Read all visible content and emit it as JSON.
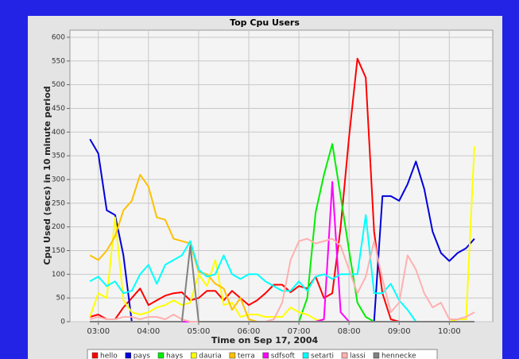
{
  "chart_data": {
    "type": "line",
    "title": "Top Cpu Users",
    "x_label": "Time on Sep 17, 2004",
    "y_label": "Cpu Used (secs) in 10 minute period",
    "x": [
      170,
      180,
      190,
      200,
      210,
      220,
      230,
      240,
      250,
      260,
      270,
      280,
      290,
      300,
      310,
      320,
      330,
      340,
      350,
      360,
      370,
      380,
      390,
      400,
      410,
      420,
      430,
      440,
      450,
      460,
      470,
      480,
      490,
      500,
      510,
      520,
      530,
      540,
      550,
      560,
      570,
      580,
      590,
      600,
      610,
      620,
      630
    ],
    "xlim": [
      146,
      652
    ],
    "xticks": [
      {
        "value": 180,
        "label": "03:00"
      },
      {
        "value": 240,
        "label": "04:00"
      },
      {
        "value": 300,
        "label": "05:00"
      },
      {
        "value": 360,
        "label": "06:00"
      },
      {
        "value": 420,
        "label": "07:00"
      },
      {
        "value": 480,
        "label": "08:00"
      },
      {
        "value": 540,
        "label": "09:00"
      },
      {
        "value": 600,
        "label": "10:00"
      }
    ],
    "ylim": [
      0,
      615
    ],
    "yticks": [
      0,
      50,
      100,
      150,
      200,
      250,
      300,
      350,
      400,
      450,
      500,
      550,
      600
    ],
    "grid": true,
    "legend": "bottom",
    "series": [
      {
        "name": "hello",
        "color": "#ff0000",
        "values": [
          10,
          15,
          5,
          5,
          30,
          50,
          70,
          35,
          45,
          55,
          60,
          62,
          45,
          50,
          65,
          65,
          45,
          65,
          50,
          35,
          45,
          60,
          78,
          78,
          62,
          75,
          70,
          95,
          50,
          60,
          200,
          390,
          555,
          515,
          190,
          60,
          5,
          0,
          0,
          0,
          0,
          0,
          0,
          0,
          0,
          0,
          0
        ]
      },
      {
        "name": "pays",
        "color": "#0000dd",
        "values": [
          385,
          355,
          235,
          225,
          140,
          0,
          0,
          0,
          0,
          0,
          0,
          0,
          0,
          0,
          0,
          0,
          0,
          0,
          0,
          0,
          0,
          0,
          0,
          0,
          0,
          0,
          0,
          0,
          0,
          0,
          0,
          0,
          0,
          0,
          0,
          265,
          265,
          255,
          290,
          338,
          280,
          190,
          145,
          128,
          145,
          155,
          175
        ]
      },
      {
        "name": "hays",
        "color": "#00ee00",
        "values": [
          0,
          0,
          0,
          0,
          0,
          0,
          0,
          0,
          0,
          0,
          0,
          0,
          0,
          0,
          0,
          0,
          0,
          0,
          0,
          0,
          0,
          0,
          0,
          0,
          0,
          0,
          50,
          230,
          310,
          375,
          265,
          150,
          40,
          10,
          0,
          0,
          0,
          0,
          0,
          0,
          0,
          0,
          0,
          0,
          0,
          0,
          0
        ]
      },
      {
        "name": "dauria",
        "color": "#ffff00",
        "values": [
          10,
          60,
          50,
          220,
          45,
          20,
          15,
          20,
          30,
          35,
          45,
          35,
          40,
          100,
          75,
          130,
          35,
          40,
          10,
          15,
          15,
          10,
          10,
          10,
          30,
          20,
          15,
          5,
          0,
          0,
          0,
          0,
          0,
          0,
          0,
          0,
          0,
          0,
          0,
          0,
          0,
          0,
          0,
          0,
          5,
          5,
          370
        ]
      },
      {
        "name": "terra",
        "color": "#ffc000",
        "values": [
          140,
          130,
          150,
          180,
          235,
          255,
          310,
          285,
          220,
          215,
          175,
          170,
          165,
          105,
          100,
          80,
          70,
          25,
          50,
          5,
          0,
          0,
          0,
          0,
          0,
          0,
          0,
          0,
          0,
          0,
          0,
          0,
          0,
          0,
          0,
          0,
          0,
          0,
          0,
          0,
          0,
          0,
          0,
          0,
          0,
          0,
          0
        ]
      },
      {
        "name": "sdfsoft",
        "color": "#ff00ff",
        "values": [
          0,
          0,
          0,
          0,
          0,
          0,
          0,
          0,
          0,
          0,
          0,
          0,
          0,
          0,
          0,
          0,
          0,
          0,
          0,
          0,
          0,
          0,
          0,
          0,
          0,
          0,
          0,
          0,
          5,
          295,
          20,
          0,
          0,
          0,
          0,
          0,
          0,
          0,
          0,
          0,
          0,
          0,
          0,
          0,
          0,
          0,
          0
        ]
      },
      {
        "name": "setarti",
        "color": "#00ffff",
        "values": [
          85,
          95,
          75,
          85,
          60,
          65,
          100,
          120,
          80,
          120,
          130,
          140,
          170,
          110,
          95,
          100,
          140,
          100,
          90,
          100,
          100,
          85,
          75,
          65,
          65,
          85,
          65,
          95,
          100,
          90,
          100,
          100,
          100,
          225,
          60,
          60,
          80,
          45,
          25,
          0,
          0,
          0,
          0,
          0,
          0,
          0,
          0
        ]
      },
      {
        "name": "lassi",
        "color": "#ffb0b0",
        "values": [
          5,
          10,
          5,
          5,
          10,
          10,
          5,
          10,
          10,
          5,
          15,
          5,
          0,
          0,
          0,
          0,
          0,
          0,
          0,
          0,
          0,
          0,
          5,
          40,
          130,
          170,
          175,
          165,
          170,
          175,
          160,
          110,
          60,
          95,
          170,
          90,
          20,
          40,
          140,
          110,
          60,
          30,
          40,
          5,
          5,
          10,
          20
        ]
      },
      {
        "name": "hennecke",
        "color": "#808080",
        "values": [
          0,
          0,
          0,
          0,
          0,
          0,
          0,
          0,
          0,
          0,
          0,
          0,
          160,
          0,
          0,
          0,
          0,
          0,
          0,
          0,
          0,
          0,
          0,
          0,
          0,
          0,
          0,
          0,
          0,
          0,
          0,
          0,
          0,
          0,
          0,
          0,
          0,
          0,
          0,
          0,
          0,
          0,
          0,
          0,
          0,
          0,
          0
        ]
      }
    ]
  }
}
